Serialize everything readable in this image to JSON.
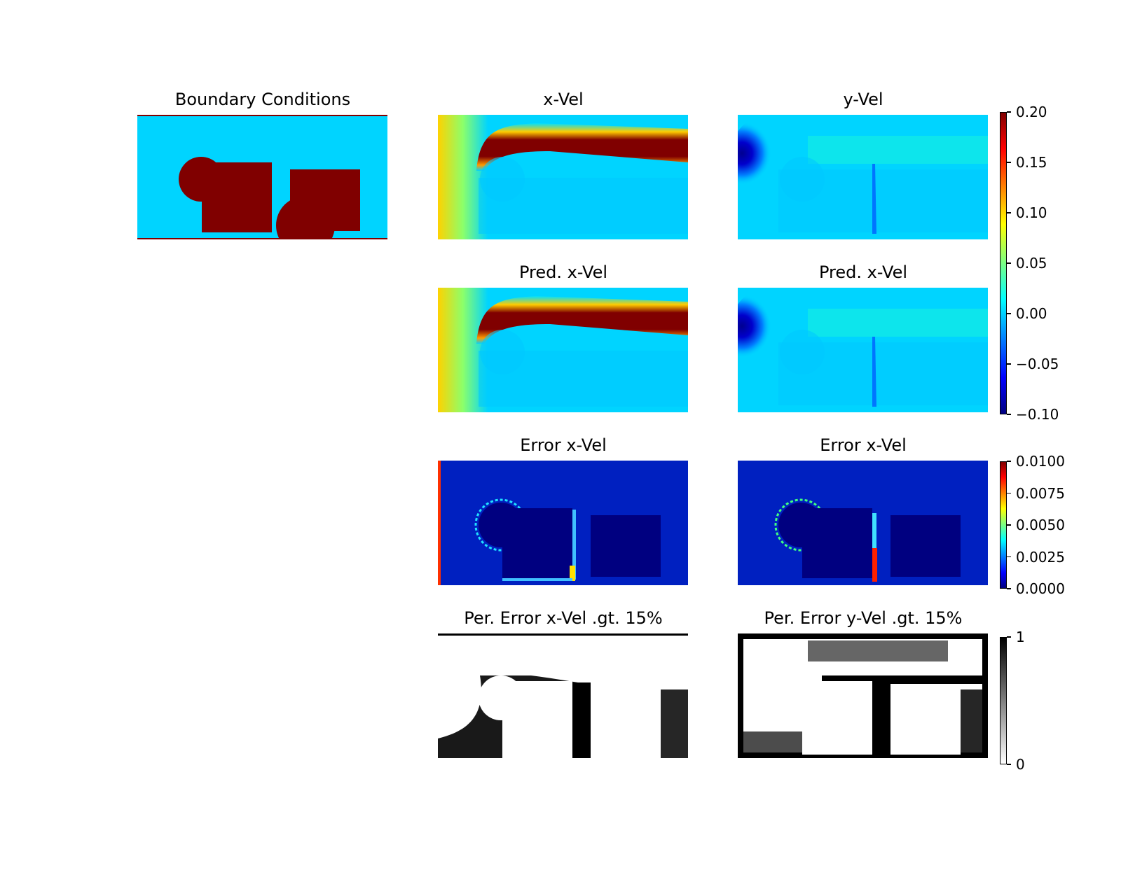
{
  "chart_data": [
    {
      "type": "heatmap",
      "title": "Boundary Conditions",
      "colormap": "jet",
      "values": [
        0,
        1
      ],
      "note_colors": {
        "fluid": "#00d4ff",
        "solid": "#800000"
      }
    },
    {
      "type": "heatmap",
      "title": "x-Vel",
      "colormap": "jet",
      "vlim": [
        -0.1,
        0.2
      ]
    },
    {
      "type": "heatmap",
      "title": "y-Vel",
      "colormap": "jet",
      "vlim": [
        -0.1,
        0.2
      ]
    },
    {
      "type": "heatmap",
      "title": "Pred. x-Vel",
      "colormap": "jet",
      "vlim": [
        -0.1,
        0.2
      ]
    },
    {
      "type": "heatmap",
      "title": "Pred. x-Vel",
      "colormap": "jet",
      "vlim": [
        -0.1,
        0.2
      ]
    },
    {
      "type": "heatmap",
      "title": "Error x-Vel",
      "colormap": "jet",
      "vlim": [
        0,
        0.01
      ]
    },
    {
      "type": "heatmap",
      "title": "Error x-Vel",
      "colormap": "jet",
      "vlim": [
        0,
        0.01
      ]
    },
    {
      "type": "heatmap",
      "title": "Per. Error x-Vel .gt. 15%",
      "colormap": "gray_r",
      "vlim": [
        0,
        1
      ]
    },
    {
      "type": "heatmap",
      "title": "Per. Error y-Vel .gt. 15%",
      "colormap": "gray_r",
      "vlim": [
        0,
        1
      ]
    }
  ],
  "colorbars": {
    "velocity": {
      "ticks": [
        "0.20",
        "0.15",
        "0.10",
        "0.05",
        "0.00",
        "−0.05",
        "−0.10"
      ],
      "range": [
        -0.1,
        0.2
      ]
    },
    "error": {
      "ticks": [
        "0.0100",
        "0.0075",
        "0.0050",
        "0.0025",
        "0.0000"
      ],
      "range": [
        0,
        0.01
      ]
    },
    "percent": {
      "ticks": [
        "1",
        "0"
      ],
      "range": [
        0,
        1
      ]
    }
  }
}
